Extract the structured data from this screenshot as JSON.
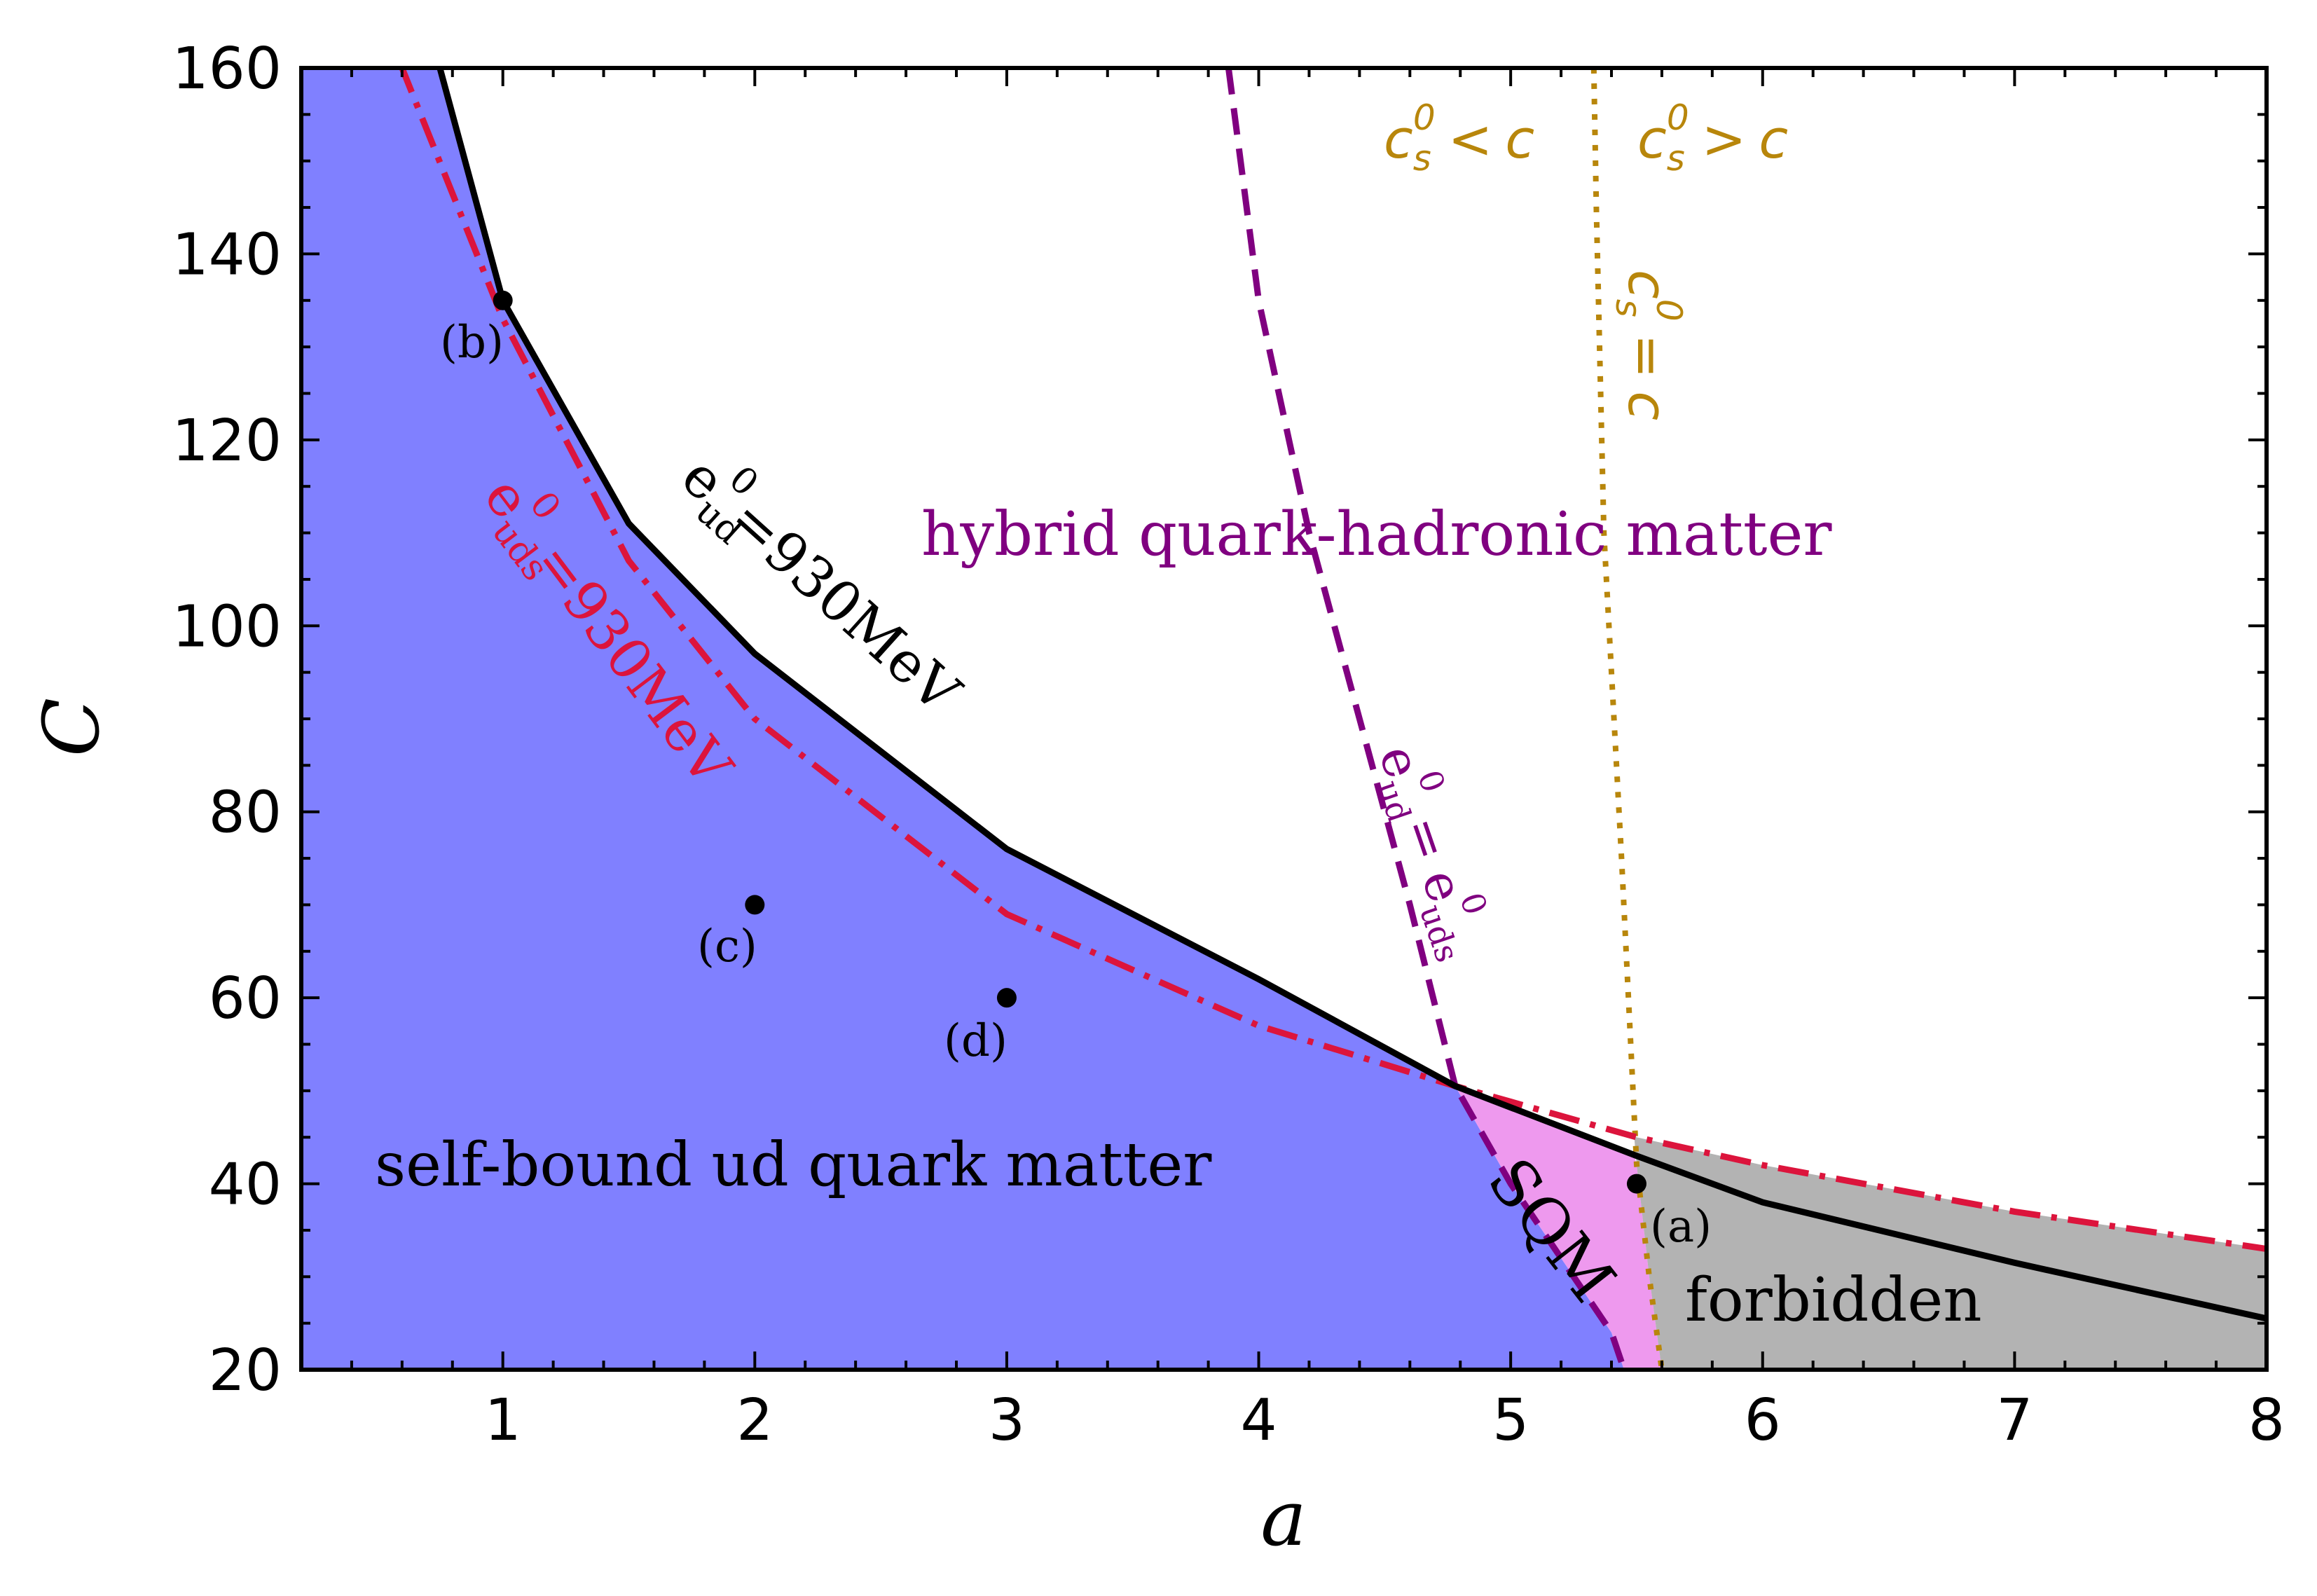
{
  "chart_data": {
    "type": "line",
    "xlabel": "a",
    "ylabel": "C",
    "xlim": [
      0.2,
      8
    ],
    "ylim": [
      20,
      160
    ],
    "x_ticks": [
      "1",
      "2",
      "3",
      "4",
      "5",
      "6",
      "7",
      "8"
    ],
    "y_ticks": [
      "20",
      "40",
      "60",
      "80",
      "100",
      "120",
      "140",
      "160"
    ],
    "colors": {
      "ud_region": "#8080ff",
      "sqm_region": "#ee99ee",
      "forbidden_region": "#b3b3b3",
      "eud_line": "#000000",
      "euds_line": "#dc143c",
      "boundary_line": "#800080",
      "cs_line": "#b8860b"
    },
    "series": [
      {
        "label": "e_ud^0=930MeV",
        "style": "solid",
        "points": [
          [
            0.55,
            178
          ],
          [
            0.75,
            160
          ],
          [
            1.0,
            135
          ],
          [
            1.5,
            111
          ],
          [
            2.0,
            97
          ],
          [
            3.0,
            76
          ],
          [
            4.0,
            62
          ],
          [
            4.78,
            50.5
          ],
          [
            5.5,
            43
          ],
          [
            6.0,
            38
          ],
          [
            7.0,
            31.5
          ],
          [
            8.0,
            25.5
          ]
        ]
      },
      {
        "label": "e_uds^0=930MeV",
        "style": "dash-dot",
        "points": [
          [
            0.4,
            172
          ],
          [
            0.6,
            160
          ],
          [
            1.0,
            133
          ],
          [
            1.5,
            107
          ],
          [
            2.0,
            90
          ],
          [
            3.0,
            69
          ],
          [
            4.0,
            57
          ],
          [
            4.78,
            50.5
          ],
          [
            5.5,
            45
          ],
          [
            6.0,
            42
          ],
          [
            7.0,
            37
          ],
          [
            8.0,
            33
          ]
        ]
      },
      {
        "label": "e_ud^0 = e_uds^0",
        "style": "dashed",
        "points": [
          [
            3.88,
            160
          ],
          [
            4.0,
            135
          ],
          [
            4.2,
            110
          ],
          [
            4.4,
            90
          ],
          [
            4.6,
            70
          ],
          [
            4.78,
            50.5
          ],
          [
            5.0,
            40
          ],
          [
            5.2,
            32
          ],
          [
            5.4,
            24
          ],
          [
            5.45,
            20
          ]
        ]
      },
      {
        "label": "c_s^0 = c",
        "style": "dotted",
        "points": [
          [
            5.33,
            160
          ],
          [
            5.34,
            145
          ],
          [
            5.37,
            110
          ],
          [
            5.39,
            100
          ],
          [
            5.44,
            75
          ],
          [
            5.5,
            42
          ],
          [
            5.55,
            30
          ],
          [
            5.6,
            20
          ]
        ]
      }
    ],
    "points": [
      {
        "label": "(a)",
        "x": 5.5,
        "y": 40
      },
      {
        "label": "(b)",
        "x": 1.0,
        "y": 135
      },
      {
        "label": "(c)",
        "x": 2.0,
        "y": 70
      },
      {
        "label": "(d)",
        "x": 3.0,
        "y": 60
      }
    ],
    "annotations": {
      "ud_region": "self-bound ud quark matter",
      "hybrid_region": "hybrid quark-hadronic matter",
      "sqm_region": "SQM",
      "forbidden_region": "forbidden",
      "cs_less": "c_s^0 < c",
      "cs_greater": "c_s^0 > c",
      "e_symbol": "e",
      "c_symbol": "c",
      "ud_sub": "ud",
      "uds_sub": "uds",
      "s_sub": "s",
      "zero_sup": "0",
      "mev_label": "=930MeV",
      "equals": "=",
      "less": "<",
      "greater": ">"
    }
  }
}
